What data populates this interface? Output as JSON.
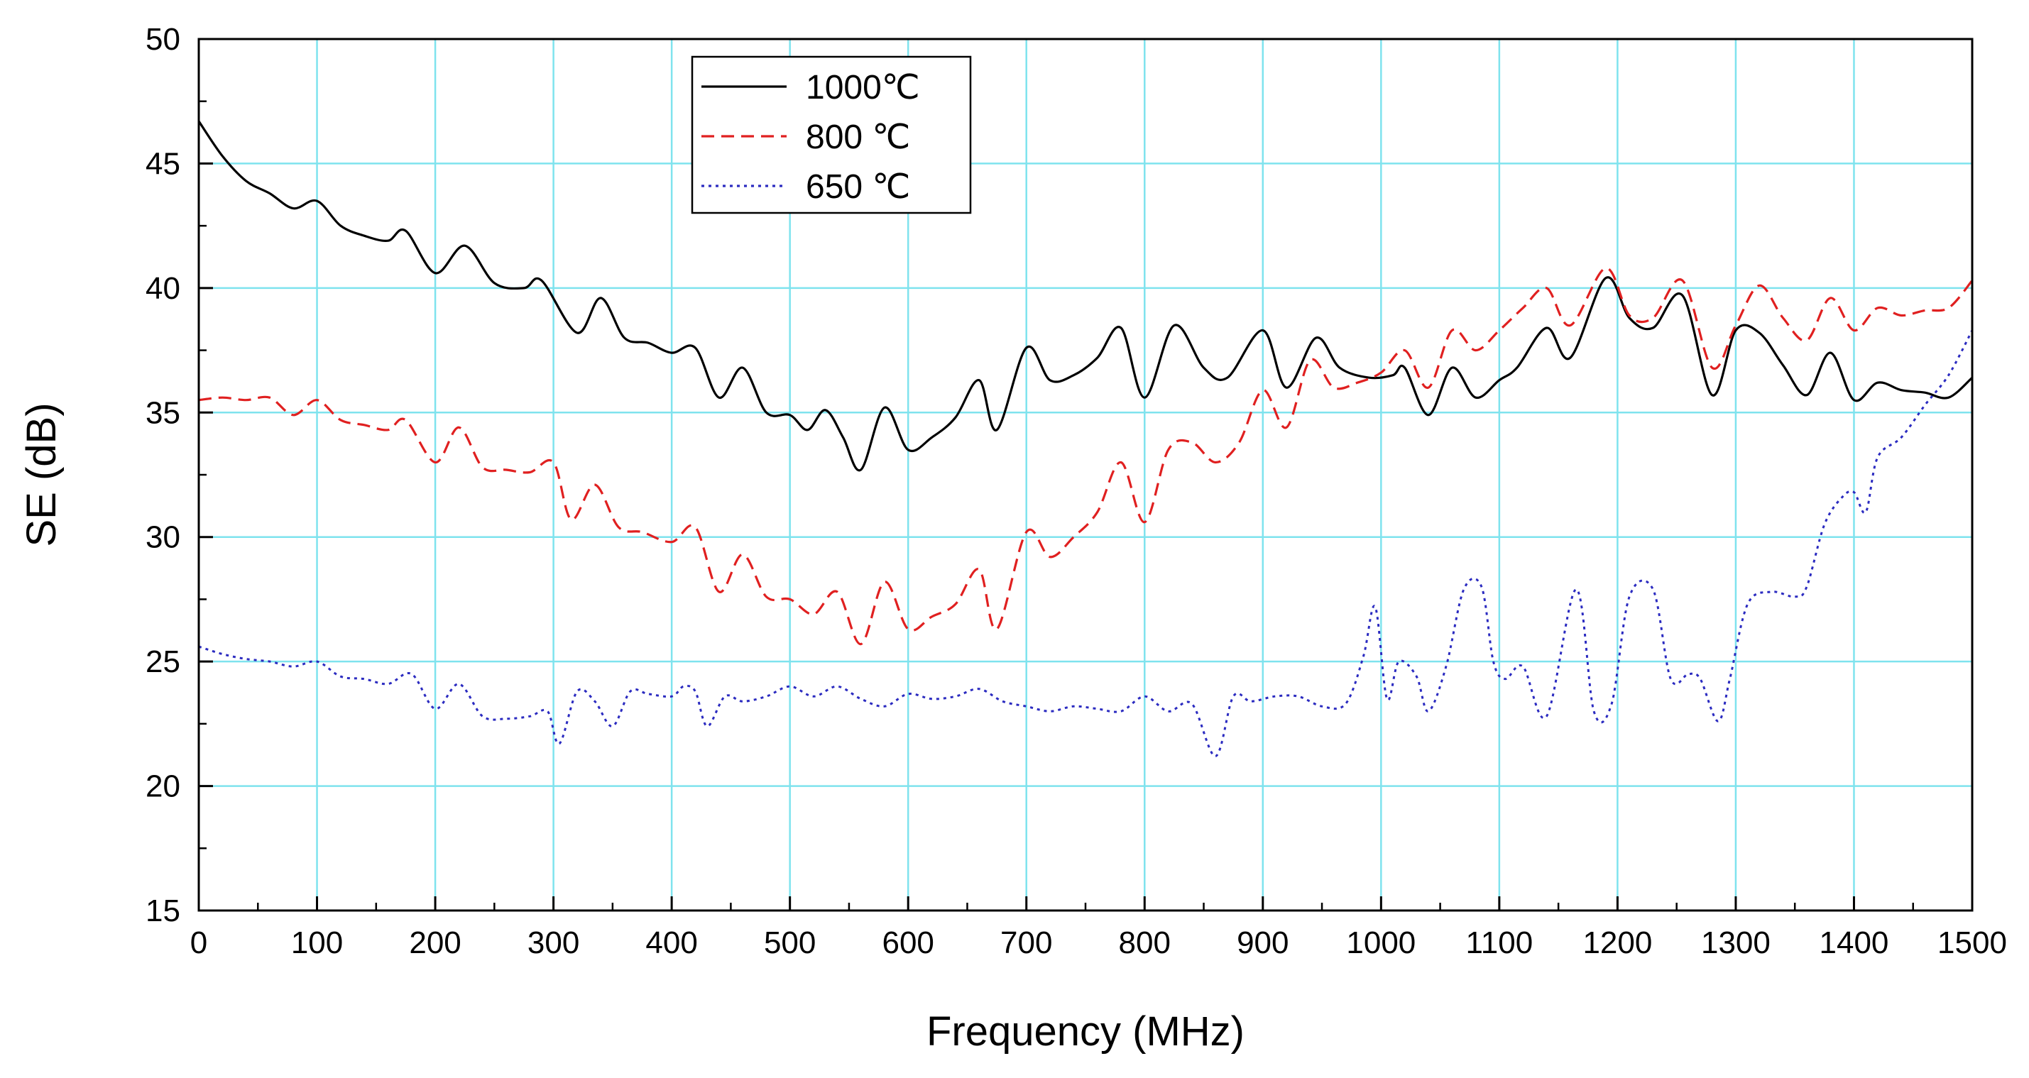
{
  "chart_data": {
    "type": "line",
    "title": "",
    "xlabel": "Frequency (MHz)",
    "ylabel": "SE (dB)",
    "xlim": [
      0,
      1500
    ],
    "ylim": [
      15,
      50
    ],
    "xticks": [
      0,
      100,
      200,
      300,
      400,
      500,
      600,
      700,
      800,
      900,
      1000,
      1100,
      1200,
      1300,
      1400,
      1500
    ],
    "yticks": [
      15,
      20,
      25,
      30,
      35,
      40,
      45,
      50
    ],
    "grid": true,
    "legend_position": "top-left",
    "series": [
      {
        "name": "1000℃",
        "color": "#000000",
        "style": "solid",
        "x": [
          0,
          20,
          40,
          60,
          80,
          100,
          120,
          140,
          160,
          175,
          200,
          225,
          250,
          275,
          290,
          320,
          340,
          360,
          380,
          400,
          420,
          440,
          460,
          480,
          500,
          515,
          530,
          545,
          560,
          580,
          600,
          620,
          640,
          660,
          675,
          700,
          720,
          740,
          760,
          780,
          800,
          825,
          850,
          870,
          900,
          920,
          945,
          965,
          990,
          1010,
          1020,
          1040,
          1060,
          1080,
          1100,
          1115,
          1140,
          1160,
          1190,
          1210,
          1230,
          1255,
          1280,
          1300,
          1320,
          1340,
          1360,
          1380,
          1400,
          1420,
          1440,
          1460,
          1480,
          1500
        ],
        "y": [
          46.7,
          45.3,
          44.3,
          43.8,
          43.2,
          43.5,
          42.5,
          42.1,
          41.9,
          42.3,
          40.6,
          41.7,
          40.2,
          40.0,
          40.3,
          38.2,
          39.6,
          38.0,
          37.8,
          37.4,
          37.6,
          35.6,
          36.8,
          35.0,
          34.9,
          34.3,
          35.1,
          34.0,
          32.7,
          35.2,
          33.5,
          34.0,
          34.8,
          36.3,
          34.3,
          37.6,
          36.3,
          36.5,
          37.2,
          38.4,
          35.6,
          38.5,
          36.8,
          36.4,
          38.3,
          36.0,
          38.0,
          36.8,
          36.4,
          36.5,
          36.8,
          34.9,
          36.8,
          35.6,
          36.3,
          36.8,
          38.4,
          37.2,
          40.4,
          38.8,
          38.4,
          39.7,
          35.7,
          38.3,
          38.2,
          36.9,
          35.7,
          37.4,
          35.5,
          36.2,
          35.9,
          35.8,
          35.6,
          36.4
        ]
      },
      {
        "name": "800 ℃",
        "color": "#e02020",
        "style": "dashed",
        "x": [
          0,
          20,
          40,
          60,
          80,
          100,
          120,
          140,
          160,
          175,
          200,
          220,
          240,
          260,
          280,
          300,
          315,
          335,
          355,
          375,
          400,
          420,
          440,
          460,
          480,
          500,
          520,
          540,
          560,
          580,
          600,
          620,
          640,
          660,
          675,
          700,
          720,
          740,
          760,
          780,
          800,
          820,
          840,
          860,
          880,
          900,
          920,
          940,
          960,
          980,
          1000,
          1020,
          1040,
          1060,
          1080,
          1100,
          1120,
          1140,
          1160,
          1190,
          1210,
          1230,
          1255,
          1280,
          1300,
          1320,
          1340,
          1360,
          1380,
          1400,
          1420,
          1440,
          1460,
          1480,
          1500
        ],
        "y": [
          35.5,
          35.6,
          35.5,
          35.6,
          34.9,
          35.5,
          34.7,
          34.5,
          34.3,
          34.7,
          33.0,
          34.4,
          32.8,
          32.7,
          32.6,
          33.0,
          30.7,
          32.1,
          30.4,
          30.2,
          29.8,
          30.4,
          27.8,
          29.3,
          27.6,
          27.5,
          26.9,
          27.8,
          25.7,
          28.2,
          26.3,
          26.8,
          27.3,
          28.7,
          26.3,
          30.2,
          29.2,
          30.0,
          31.0,
          33.0,
          30.6,
          33.5,
          33.8,
          33.0,
          33.8,
          35.9,
          34.4,
          37.1,
          36.0,
          36.2,
          36.6,
          37.5,
          36.0,
          38.3,
          37.5,
          38.3,
          39.2,
          40.0,
          38.5,
          40.8,
          38.9,
          38.8,
          40.3,
          36.8,
          38.5,
          40.1,
          38.8,
          37.9,
          39.6,
          38.3,
          39.2,
          38.9,
          39.1,
          39.2,
          40.3
        ]
      },
      {
        "name": "650 ℃",
        "color": "#2b2bc0",
        "style": "dotted",
        "x": [
          0,
          20,
          40,
          60,
          80,
          100,
          120,
          140,
          160,
          180,
          200,
          220,
          240,
          260,
          280,
          295,
          305,
          320,
          335,
          350,
          365,
          380,
          400,
          410,
          420,
          430,
          445,
          460,
          480,
          500,
          520,
          540,
          560,
          580,
          600,
          620,
          640,
          660,
          680,
          700,
          720,
          740,
          760,
          780,
          800,
          820,
          840,
          860,
          875,
          890,
          910,
          930,
          950,
          970,
          985,
          995,
          1005,
          1015,
          1030,
          1040,
          1055,
          1070,
          1085,
          1095,
          1105,
          1120,
          1140,
          1165,
          1180,
          1195,
          1210,
          1230,
          1245,
          1260,
          1270,
          1285,
          1295,
          1310,
          1330,
          1350,
          1360,
          1375,
          1390,
          1400,
          1410,
          1420,
          1440,
          1460,
          1480,
          1500
        ],
        "y": [
          25.6,
          25.3,
          25.1,
          25.0,
          24.8,
          25.0,
          24.4,
          24.3,
          24.1,
          24.5,
          23.1,
          24.1,
          22.8,
          22.7,
          22.8,
          23.0,
          21.7,
          23.8,
          23.4,
          22.4,
          23.8,
          23.7,
          23.6,
          24.0,
          23.8,
          22.4,
          23.6,
          23.4,
          23.6,
          24.0,
          23.6,
          24.0,
          23.5,
          23.2,
          23.7,
          23.5,
          23.6,
          23.9,
          23.4,
          23.2,
          23.0,
          23.2,
          23.1,
          23.0,
          23.6,
          23.0,
          23.3,
          21.2,
          23.6,
          23.4,
          23.6,
          23.6,
          23.2,
          23.3,
          25.2,
          27.2,
          23.5,
          25.0,
          24.4,
          23.0,
          24.8,
          27.9,
          28.0,
          25.0,
          24.3,
          24.8,
          22.8,
          27.9,
          23.0,
          23.3,
          27.6,
          27.9,
          24.3,
          24.5,
          24.3,
          22.6,
          24.3,
          27.3,
          27.8,
          27.6,
          28.0,
          30.5,
          31.6,
          31.8,
          31.0,
          33.2,
          34.0,
          35.3,
          36.5,
          38.3
        ]
      }
    ]
  }
}
